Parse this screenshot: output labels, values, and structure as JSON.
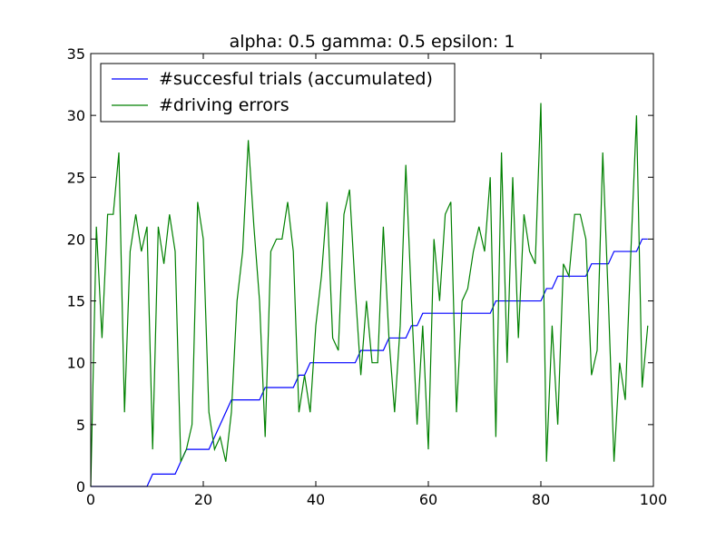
{
  "chart_data": {
    "type": "line",
    "title": "alpha: 0.5 gamma: 0.5 epsilon: 1",
    "xlabel": "",
    "ylabel": "",
    "xlim": [
      0,
      100
    ],
    "ylim": [
      0,
      35
    ],
    "xticks": [
      0,
      20,
      40,
      60,
      80,
      100
    ],
    "yticks": [
      0,
      5,
      10,
      15,
      20,
      25,
      30,
      35
    ],
    "grid": false,
    "legend_position": "top-left",
    "series": [
      {
        "name": "#succesful trials (accumulated)",
        "color": "#0000ff",
        "x": [
          0,
          1,
          2,
          3,
          4,
          5,
          6,
          7,
          8,
          9,
          10,
          11,
          12,
          13,
          14,
          15,
          16,
          17,
          18,
          19,
          20,
          21,
          22,
          23,
          24,
          25,
          26,
          27,
          28,
          29,
          30,
          31,
          32,
          33,
          34,
          35,
          36,
          37,
          38,
          39,
          40,
          41,
          42,
          43,
          44,
          45,
          46,
          47,
          48,
          49,
          50,
          51,
          52,
          53,
          54,
          55,
          56,
          57,
          58,
          59,
          60,
          61,
          62,
          63,
          64,
          65,
          66,
          67,
          68,
          69,
          70,
          71,
          72,
          73,
          74,
          75,
          76,
          77,
          78,
          79,
          80,
          81,
          82,
          83,
          84,
          85,
          86,
          87,
          88,
          89,
          90,
          91,
          92,
          93,
          94,
          95,
          96,
          97,
          98,
          99
        ],
        "y": [
          0,
          0,
          0,
          0,
          0,
          0,
          0,
          0,
          0,
          0,
          0,
          1,
          1,
          1,
          1,
          1,
          2,
          3,
          3,
          3,
          3,
          3,
          4,
          5,
          6,
          7,
          7,
          7,
          7,
          7,
          7,
          8,
          8,
          8,
          8,
          8,
          8,
          9,
          9,
          10,
          10,
          10,
          10,
          10,
          10,
          10,
          10,
          10,
          11,
          11,
          11,
          11,
          11,
          12,
          12,
          12,
          12,
          13,
          13,
          14,
          14,
          14,
          14,
          14,
          14,
          14,
          14,
          14,
          14,
          14,
          14,
          14,
          15,
          15,
          15,
          15,
          15,
          15,
          15,
          15,
          15,
          16,
          16,
          17,
          17,
          17,
          17,
          17,
          17,
          18,
          18,
          18,
          18,
          19,
          19,
          19,
          19,
          19,
          20,
          20
        ]
      },
      {
        "name": "#driving errors",
        "color": "#008000",
        "x": [
          0,
          1,
          2,
          3,
          4,
          5,
          6,
          7,
          8,
          9,
          10,
          11,
          12,
          13,
          14,
          15,
          16,
          17,
          18,
          19,
          20,
          21,
          22,
          23,
          24,
          25,
          26,
          27,
          28,
          29,
          30,
          31,
          32,
          33,
          34,
          35,
          36,
          37,
          38,
          39,
          40,
          41,
          42,
          43,
          44,
          45,
          46,
          47,
          48,
          49,
          50,
          51,
          52,
          53,
          54,
          55,
          56,
          57,
          58,
          59,
          60,
          61,
          62,
          63,
          64,
          65,
          66,
          67,
          68,
          69,
          70,
          71,
          72,
          73,
          74,
          75,
          76,
          77,
          78,
          79,
          80,
          81,
          82,
          83,
          84,
          85,
          86,
          87,
          88,
          89,
          90,
          91,
          92,
          93,
          94,
          95,
          96,
          97,
          98,
          99
        ],
        "y": [
          0,
          21,
          12,
          22,
          22,
          27,
          6,
          19,
          22,
          19,
          21,
          3,
          21,
          18,
          22,
          19,
          2,
          3,
          5,
          23,
          20,
          6,
          3,
          4,
          2,
          6,
          15,
          19,
          28,
          21,
          15,
          4,
          19,
          20,
          20,
          23,
          19,
          6,
          9,
          6,
          13,
          17,
          23,
          12,
          11,
          22,
          24,
          16,
          9,
          15,
          10,
          10,
          21,
          12,
          6,
          13,
          26,
          15,
          5,
          13,
          3,
          20,
          15,
          22,
          23,
          6,
          15,
          16,
          19,
          21,
          19,
          25,
          4,
          27,
          10,
          25,
          12,
          22,
          19,
          18,
          31,
          2,
          13,
          5,
          18,
          17,
          22,
          22,
          20,
          9,
          11,
          27,
          15,
          2,
          10,
          7,
          19,
          30,
          8,
          13
        ]
      }
    ]
  }
}
